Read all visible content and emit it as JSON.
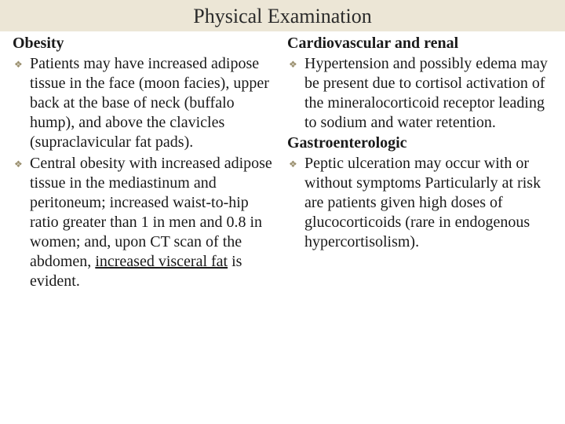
{
  "title": "Physical Examination",
  "bullet_glyph": "❖",
  "colors": {
    "title_bg": "#ece6d6",
    "text": "#1a1a1a",
    "bullet": "#9a8f6e",
    "page_bg": "#ffffff"
  },
  "typography": {
    "title_fontsize": 26,
    "heading_fontsize": 20,
    "body_fontsize": 20,
    "font_family": "Georgia, serif"
  },
  "left": {
    "heading": "Obesity",
    "items": [
      "Patients may have increased adipose tissue in the face (moon facies), upper back at the base of neck (buffalo hump), and above the clavicles (supraclavicular fat pads).",
      "Central obesity with increased adipose tissue in the mediastinum and peritoneum; increased waist-to-hip ratio greater than 1 in men and 0.8 in women; and, upon CT scan of the abdomen, "
    ],
    "item2_underlined_a": "increased visceral fat",
    "item2_tail": " is evident."
  },
  "right": {
    "heading1": "Cardiovascular and renal",
    "items1": [
      "Hypertension and possibly edema may be present due to cortisol activation of the mineralocorticoid receptor leading to sodium and water retention."
    ],
    "heading2": "Gastroenterologic",
    "items2": [
      "Peptic ulceration may occur with or without symptoms Particularly at risk are patients given high doses of glucocorticoids (rare in endogenous hypercortisolism)."
    ]
  }
}
